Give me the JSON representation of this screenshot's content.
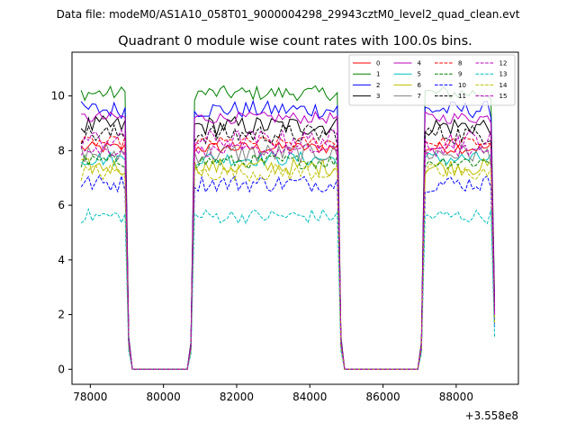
{
  "suptitle": "Data file: modeM0/AS1A10_058T01_9000004298_29943cztM0_level2_quad_clean.evt",
  "chart_data": {
    "type": "line",
    "title": "Quadrant 0 module wise count rates with 100.0s bins.",
    "xlabel": "",
    "ylabel": "",
    "x_offset_label": "+3.558e8",
    "xlim": [
      77500,
      89700
    ],
    "ylim": [
      -0.55,
      11.6
    ],
    "xticks": [
      78000,
      80000,
      82000,
      84000,
      86000,
      88000
    ],
    "xtick_labels": [
      "78000",
      "80000",
      "82000",
      "84000",
      "86000",
      "88000"
    ],
    "yticks": [
      0,
      2,
      4,
      6,
      8,
      10
    ],
    "ytick_labels": [
      "0",
      "2",
      "4",
      "6",
      "8",
      "10"
    ],
    "grid": false,
    "legend_position": "upper-right",
    "x_start": 77750,
    "x_step": 100,
    "segments": [
      {
        "state": "on",
        "x_start": 77750,
        "x_end": 78950
      },
      {
        "state": "gap",
        "x_start": 79050,
        "x_end": 80750
      },
      {
        "state": "on",
        "x_start": 80850,
        "x_end": 84750
      },
      {
        "state": "gap",
        "x_start": 84850,
        "x_end": 87050
      },
      {
        "state": "on",
        "x_start": 87150,
        "x_end": 89050
      }
    ],
    "series": [
      {
        "name": "0",
        "color": "#ff0000",
        "dash": "solid",
        "mean": 8.1
      },
      {
        "name": "1",
        "color": "#008000",
        "dash": "solid",
        "mean": 10.1
      },
      {
        "name": "2",
        "color": "#0000ff",
        "dash": "solid",
        "mean": 9.5
      },
      {
        "name": "3",
        "color": "#000000",
        "dash": "solid",
        "mean": 8.9
      },
      {
        "name": "4",
        "color": "#bf00bf",
        "dash": "solid",
        "mean": 9.2
      },
      {
        "name": "5",
        "color": "#00bfbf",
        "dash": "solid",
        "mean": 7.7
      },
      {
        "name": "6",
        "color": "#bfbf00",
        "dash": "solid",
        "mean": 7.4
      },
      {
        "name": "7",
        "color": "#808080",
        "dash": "solid",
        "mean": 7.9
      },
      {
        "name": "8",
        "color": "#ff0000",
        "dash": "dashed",
        "mean": 8.3
      },
      {
        "name": "9",
        "color": "#008000",
        "dash": "dashed",
        "mean": 7.6
      },
      {
        "name": "10",
        "color": "#0000ff",
        "dash": "dashed",
        "mean": 6.8
      },
      {
        "name": "11",
        "color": "#000000",
        "dash": "dashed",
        "mean": 8.6
      },
      {
        "name": "12",
        "color": "#bf00bf",
        "dash": "dashed",
        "mean": 8.0
      },
      {
        "name": "13",
        "color": "#00bfbf",
        "dash": "dashed",
        "mean": 5.6
      },
      {
        "name": "14",
        "color": "#bfbf00",
        "dash": "dashed",
        "mean": 7.2
      },
      {
        "name": "15",
        "color": "#bf00bf",
        "dash": "dashed",
        "mean": 8.4
      }
    ]
  }
}
